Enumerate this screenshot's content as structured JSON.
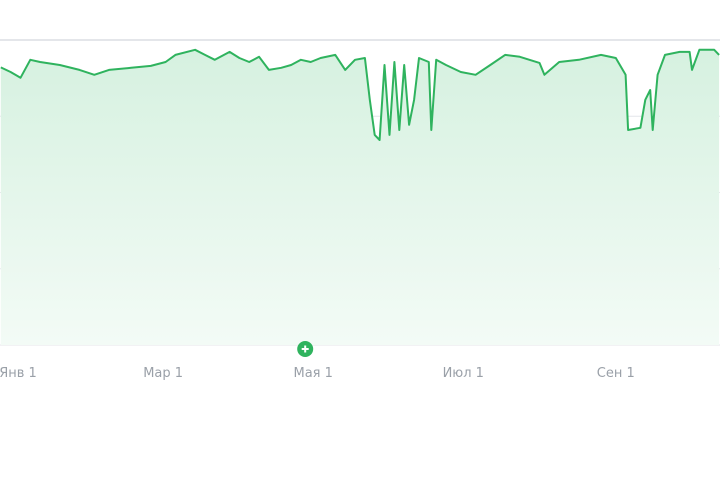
{
  "chart_data": {
    "type": "area",
    "title": "",
    "xlabel": "",
    "ylabel": "",
    "x_tick_labels": [
      {
        "date": "01-01",
        "label": "Янв 1"
      },
      {
        "date": "03-01",
        "label": "Мар 1"
      },
      {
        "date": "05-01",
        "label": "Мая 1"
      },
      {
        "date": "07-01",
        "label": "Июл 1"
      },
      {
        "date": "09-01",
        "label": "Сен 1"
      }
    ],
    "y_tick_labels": [],
    "ylim": [
      0,
      100
    ],
    "y_gridlines": [
      0,
      25,
      50,
      75,
      100
    ],
    "grid": true,
    "legend": "none",
    "colors": {
      "line": "#2fb35e",
      "fill": "#e3f5ea",
      "grid": "#e4e6ea",
      "marker": "#2fb35e"
    },
    "marker": {
      "date": "05-01",
      "icon": "plus-circle-icon"
    },
    "series": [
      {
        "x": [
          "12-25",
          "12-29",
          "01-02",
          "01-06",
          "01-10",
          "01-18",
          "01-26",
          "02-01",
          "02-07",
          "02-16",
          "02-24",
          "03-02",
          "03-06",
          "03-14",
          "03-18",
          "03-22",
          "03-28",
          "04-01",
          "04-05",
          "04-09",
          "04-13",
          "04-18",
          "04-22",
          "04-26",
          "04-30",
          "05-04",
          "05-10",
          "05-14",
          "05-18",
          "05-22",
          "05-24",
          "05-26",
          "05-28",
          "05-30",
          "06-01",
          "06-03",
          "06-05",
          "06-07",
          "06-09",
          "06-11",
          "06-13",
          "06-17",
          "06-18",
          "06-20",
          "06-24",
          "06-30",
          "07-06",
          "07-12",
          "07-18",
          "07-24",
          "08-01",
          "08-03",
          "08-09",
          "08-17",
          "08-26",
          "09-01",
          "09-05",
          "09-06",
          "09-11",
          "09-13",
          "09-15",
          "09-16",
          "09-18",
          "09-21",
          "09-27",
          "10-01",
          "10-02",
          "10-05",
          "10-11",
          "10-13"
        ],
        "values": [
          91,
          89.5,
          87.6,
          93.5,
          92.8,
          91.8,
          90.2,
          88.6,
          90.2,
          90.9,
          91.5,
          92.8,
          95.1,
          96.8,
          95.1,
          93.5,
          96.1,
          94.1,
          92.8,
          94.5,
          90.2,
          90.9,
          91.8,
          93.5,
          92.8,
          94.1,
          95.1,
          90.2,
          93.5,
          94.1,
          80.4,
          68.9,
          67.2,
          91.8,
          68.9,
          92.8,
          70.5,
          91.8,
          72.2,
          80.4,
          94.1,
          92.8,
          70.5,
          93.5,
          91.8,
          89.5,
          88.6,
          91.8,
          95.1,
          94.5,
          92.5,
          88.6,
          92.8,
          93.5,
          95.1,
          94.1,
          88.6,
          70.5,
          71.2,
          80.4,
          83.6,
          70.5,
          88.6,
          95.1,
          96.1,
          96.1,
          90.2,
          96.8,
          96.8,
          95.1
        ]
      }
    ]
  }
}
